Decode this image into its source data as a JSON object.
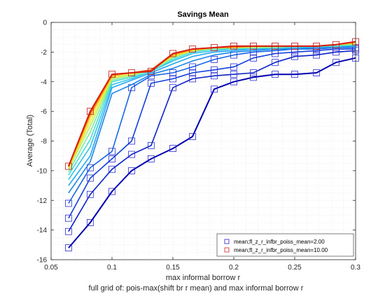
{
  "chart_data": {
    "type": "line",
    "title": "Savings Mean",
    "xlabel": "max informal borrow r",
    "ylabel": "Average (Total)",
    "footer": "full grid of: pois-max(shift br r mean) and max informal borrow r",
    "xlim": [
      0.05,
      0.3
    ],
    "ylim": [
      -16,
      0
    ],
    "xticks": [
      "0.05",
      "0.1",
      "0.15",
      "0.2",
      "0.25",
      "0.3"
    ],
    "yticks": [
      "-16",
      "-14",
      "-12",
      "-10",
      "-8",
      "-6",
      "-4",
      "-2",
      "0"
    ],
    "grid": true,
    "legend_position": "bottom-right",
    "x": [
      0.0643,
      0.0821,
      0.1,
      0.1161,
      0.1321,
      0.15,
      0.1661,
      0.1839,
      0.2,
      0.2161,
      0.2339,
      0.25,
      0.2679,
      0.2839,
      0.3
    ],
    "legend": [
      {
        "label": "mean;fl_z_r_infbr_poiss_mean=2.00",
        "color": "#1f1fd6"
      },
      {
        "label": "mean;fl_z_r_infbr_poiss_mean=10.00",
        "color": "#d62020"
      }
    ],
    "series": [
      {
        "color": "#0000b0",
        "values": [
          -15.2,
          -13.5,
          -11.4,
          -10.0,
          -9.2,
          -8.5,
          -7.7,
          -4.5,
          -4.0,
          -3.7,
          -3.5,
          -3.5,
          -3.4,
          -2.7,
          -2.4
        ]
      },
      {
        "color": "#0d22c8",
        "values": [
          -14.1,
          -11.6,
          -9.9,
          -8.9,
          -8.3,
          -4.4,
          -3.8,
          -3.6,
          -3.5,
          -3.4,
          -2.7,
          -2.3,
          -2.2,
          -2.0,
          -1.9
        ]
      },
      {
        "color": "#1040dd",
        "values": [
          -13.2,
          -10.5,
          -9.2,
          -8.0,
          -4.1,
          -3.8,
          -3.4,
          -3.2,
          -3.0,
          -2.4,
          -2.1,
          -2.0,
          -1.9,
          -1.8,
          -1.8
        ]
      },
      {
        "color": "#1565e6",
        "values": [
          -12.2,
          -9.8,
          -8.7,
          -4.4,
          -3.6,
          -3.4,
          -3.0,
          -2.5,
          -2.2,
          -2.0,
          -1.9,
          -1.8,
          -1.8,
          -1.7,
          -1.7
        ]
      },
      {
        "color": "#1a85ea",
        "values": [
          -11.5,
          -9.4,
          -4.8,
          -4.2,
          -3.5,
          -3.1,
          -2.6,
          -2.2,
          -2.0,
          -1.9,
          -1.8,
          -1.8,
          -1.7,
          -1.7,
          -1.6
        ]
      },
      {
        "color": "#22a6ef",
        "values": [
          -11.0,
          -9.0,
          -4.4,
          -3.9,
          -3.4,
          -2.8,
          -2.3,
          -2.0,
          -1.9,
          -1.8,
          -1.8,
          -1.7,
          -1.7,
          -1.6,
          -1.6
        ]
      },
      {
        "color": "#2ec5ea",
        "values": [
          -10.6,
          -8.4,
          -4.2,
          -3.8,
          -3.3,
          -2.6,
          -2.1,
          -1.9,
          -1.8,
          -1.8,
          -1.7,
          -1.7,
          -1.6,
          -1.6,
          -1.5
        ]
      },
      {
        "color": "#4cdcd0",
        "values": [
          -10.3,
          -7.9,
          -4.0,
          -3.7,
          -3.3,
          -2.5,
          -2.0,
          -1.8,
          -1.8,
          -1.7,
          -1.7,
          -1.6,
          -1.6,
          -1.6,
          -1.5
        ]
      },
      {
        "color": "#7ceb9a",
        "values": [
          -10.1,
          -7.4,
          -3.9,
          -3.6,
          -3.2,
          -2.4,
          -1.9,
          -1.8,
          -1.7,
          -1.7,
          -1.7,
          -1.6,
          -1.6,
          -1.5,
          -1.5
        ]
      },
      {
        "color": "#b6f060",
        "values": [
          -9.9,
          -7.0,
          -3.8,
          -3.5,
          -3.2,
          -2.3,
          -1.9,
          -1.7,
          -1.7,
          -1.7,
          -1.6,
          -1.6,
          -1.6,
          -1.5,
          -1.4
        ]
      },
      {
        "color": "#e6ee30",
        "values": [
          -9.8,
          -6.7,
          -3.7,
          -3.5,
          -3.2,
          -2.3,
          -1.9,
          -1.7,
          -1.7,
          -1.6,
          -1.6,
          -1.6,
          -1.6,
          -1.5,
          -1.4
        ]
      },
      {
        "color": "#f8c418",
        "values": [
          -9.8,
          -6.4,
          -3.6,
          -3.4,
          -3.2,
          -2.2,
          -1.9,
          -1.7,
          -1.7,
          -1.6,
          -1.6,
          -1.6,
          -1.6,
          -1.5,
          -1.4
        ]
      },
      {
        "color": "#f59012",
        "values": [
          -9.7,
          -6.2,
          -3.6,
          -3.4,
          -3.2,
          -2.2,
          -1.8,
          -1.7,
          -1.7,
          -1.6,
          -1.6,
          -1.6,
          -1.6,
          -1.5,
          -1.3
        ]
      },
      {
        "color": "#ee5510",
        "values": [
          -9.7,
          -6.1,
          -3.5,
          -3.4,
          -3.2,
          -2.1,
          -1.8,
          -1.7,
          -1.6,
          -1.6,
          -1.6,
          -1.6,
          -1.6,
          -1.5,
          -1.3
        ]
      },
      {
        "color": "#d81c10",
        "values": [
          -9.7,
          -6.0,
          -3.5,
          -3.4,
          -3.3,
          -2.1,
          -1.8,
          -1.7,
          -1.6,
          -1.6,
          -1.6,
          -1.6,
          -1.6,
          -1.5,
          -1.3
        ]
      }
    ]
  }
}
